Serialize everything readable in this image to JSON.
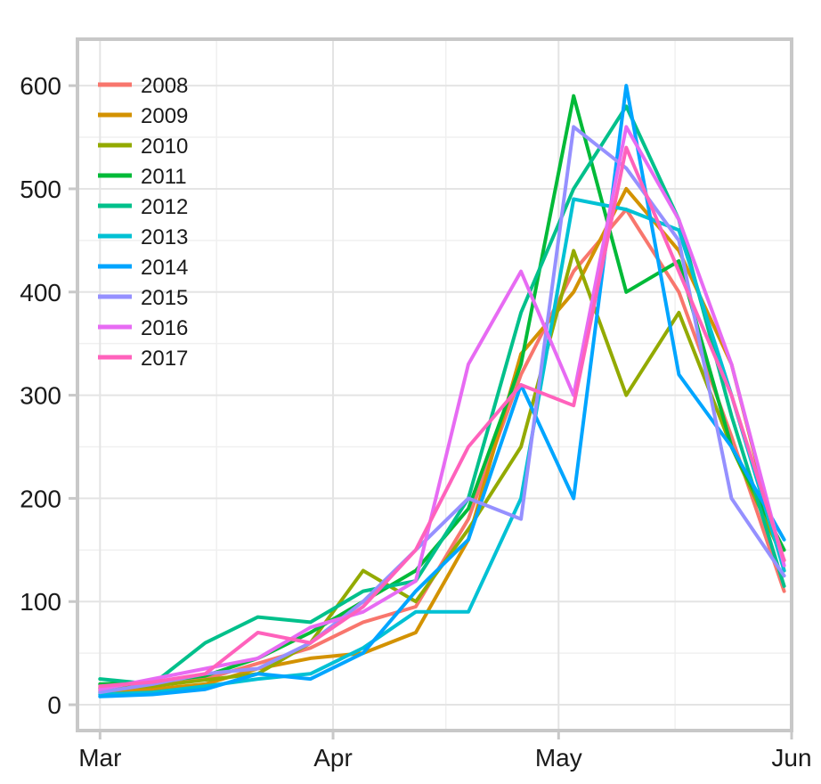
{
  "chart_data": {
    "type": "line",
    "title": "",
    "xlabel": "",
    "ylabel": "",
    "ylim": [
      -25,
      645
    ],
    "xlim": [
      "2017-02-26",
      "2017-06-01"
    ],
    "x_ticks": [
      {
        "date": "2017-03-01",
        "label": "Mar"
      },
      {
        "date": "2017-04-01",
        "label": "Apr"
      },
      {
        "date": "2017-05-01",
        "label": "May"
      },
      {
        "date": "2017-06-01",
        "label": "Jun"
      }
    ],
    "y_ticks": [
      0,
      100,
      200,
      300,
      400,
      500,
      600
    ],
    "grid": true,
    "legend_position": "top-left",
    "series": [
      {
        "name": "2008",
        "color": "#F8766D",
        "x": [
          "2017-03-01",
          "2017-03-08",
          "2017-03-15",
          "2017-03-22",
          "2017-03-29",
          "2017-04-05",
          "2017-04-12",
          "2017-04-19",
          "2017-04-26",
          "2017-05-03",
          "2017-05-10",
          "2017-05-17",
          "2017-05-24",
          "2017-05-31"
        ],
        "values": [
          14,
          18,
          25,
          40,
          55,
          80,
          95,
          180,
          320,
          420,
          480,
          400,
          260,
          110
        ]
      },
      {
        "name": "2009",
        "color": "#D39200",
        "x": [
          "2017-03-01",
          "2017-03-08",
          "2017-03-15",
          "2017-03-22",
          "2017-03-29",
          "2017-04-05",
          "2017-04-12",
          "2017-04-19",
          "2017-04-26",
          "2017-05-03",
          "2017-05-10",
          "2017-05-17",
          "2017-05-24",
          "2017-05-31"
        ],
        "values": [
          12,
          15,
          20,
          35,
          45,
          50,
          70,
          160,
          340,
          400,
          500,
          440,
          330,
          130
        ]
      },
      {
        "name": "2010",
        "color": "#93AA00",
        "x": [
          "2017-03-01",
          "2017-03-08",
          "2017-03-15",
          "2017-03-22",
          "2017-03-29",
          "2017-04-05",
          "2017-04-12",
          "2017-04-19",
          "2017-04-26",
          "2017-05-03",
          "2017-05-10",
          "2017-05-17",
          "2017-05-24",
          "2017-05-31"
        ],
        "values": [
          16,
          18,
          24,
          30,
          60,
          130,
          100,
          170,
          250,
          440,
          300,
          380,
          250,
          140
        ]
      },
      {
        "name": "2011",
        "color": "#00BA38",
        "x": [
          "2017-03-01",
          "2017-03-08",
          "2017-03-15",
          "2017-03-22",
          "2017-03-29",
          "2017-04-05",
          "2017-04-12",
          "2017-04-19",
          "2017-04-26",
          "2017-05-03",
          "2017-05-10",
          "2017-05-17",
          "2017-05-24",
          "2017-05-31"
        ],
        "values": [
          20,
          22,
          28,
          45,
          70,
          100,
          130,
          190,
          330,
          590,
          400,
          430,
          250,
          150
        ]
      },
      {
        "name": "2012",
        "color": "#00C08B",
        "x": [
          "2017-03-01",
          "2017-03-08",
          "2017-03-15",
          "2017-03-22",
          "2017-03-29",
          "2017-04-05",
          "2017-04-12",
          "2017-04-19",
          "2017-04-26",
          "2017-05-03",
          "2017-05-10",
          "2017-05-17",
          "2017-05-24",
          "2017-05-31"
        ],
        "values": [
          25,
          20,
          60,
          85,
          80,
          110,
          120,
          200,
          380,
          500,
          580,
          470,
          280,
          115
        ]
      },
      {
        "name": "2013",
        "color": "#00C1D4",
        "x": [
          "2017-03-01",
          "2017-03-08",
          "2017-03-15",
          "2017-03-22",
          "2017-03-29",
          "2017-04-05",
          "2017-04-12",
          "2017-04-19",
          "2017-04-26",
          "2017-05-03",
          "2017-05-10",
          "2017-05-17",
          "2017-05-24",
          "2017-05-31"
        ],
        "values": [
          10,
          12,
          18,
          25,
          30,
          55,
          90,
          90,
          200,
          490,
          480,
          460,
          300,
          130
        ]
      },
      {
        "name": "2014",
        "color": "#00A5FF",
        "x": [
          "2017-03-01",
          "2017-03-08",
          "2017-03-15",
          "2017-03-22",
          "2017-03-29",
          "2017-04-05",
          "2017-04-12",
          "2017-04-19",
          "2017-04-26",
          "2017-05-03",
          "2017-05-10",
          "2017-05-17",
          "2017-05-24",
          "2017-05-31"
        ],
        "values": [
          8,
          10,
          15,
          30,
          25,
          50,
          110,
          160,
          310,
          200,
          600,
          320,
          250,
          160
        ]
      },
      {
        "name": "2015",
        "color": "#9590FF",
        "x": [
          "2017-03-01",
          "2017-03-08",
          "2017-03-15",
          "2017-03-22",
          "2017-03-29",
          "2017-04-05",
          "2017-04-12",
          "2017-04-19",
          "2017-04-26",
          "2017-05-03",
          "2017-05-10",
          "2017-05-17",
          "2017-05-24",
          "2017-05-31"
        ],
        "values": [
          12,
          20,
          30,
          35,
          60,
          100,
          150,
          200,
          180,
          560,
          520,
          450,
          200,
          125
        ]
      },
      {
        "name": "2016",
        "color": "#E76BF3",
        "x": [
          "2017-03-01",
          "2017-03-08",
          "2017-03-15",
          "2017-03-22",
          "2017-03-29",
          "2017-04-05",
          "2017-04-12",
          "2017-04-19",
          "2017-04-26",
          "2017-05-03",
          "2017-05-10",
          "2017-05-17",
          "2017-05-24",
          "2017-05-31"
        ],
        "values": [
          15,
          25,
          35,
          45,
          75,
          90,
          120,
          330,
          420,
          300,
          560,
          470,
          330,
          135
        ]
      },
      {
        "name": "2017",
        "color": "#FF62BC",
        "x": [
          "2017-03-01",
          "2017-03-08",
          "2017-03-15",
          "2017-03-22",
          "2017-03-29",
          "2017-04-05",
          "2017-04-12",
          "2017-04-19",
          "2017-04-26",
          "2017-05-03",
          "2017-05-10",
          "2017-05-17",
          "2017-05-24",
          "2017-05-31"
        ],
        "values": [
          18,
          22,
          30,
          70,
          60,
          95,
          150,
          250,
          310,
          290,
          540,
          420,
          300,
          140
        ]
      }
    ]
  }
}
